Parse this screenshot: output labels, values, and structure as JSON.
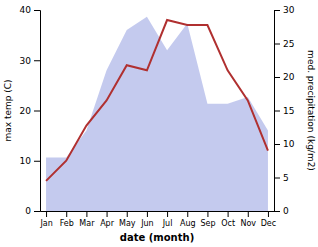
{
  "chart_data": {
    "type": "line",
    "categories": [
      "Jan",
      "Feb",
      "Mar",
      "Apr",
      "May",
      "Jun",
      "Jul",
      "Aug",
      "Sep",
      "Oct",
      "Nov",
      "Dec"
    ],
    "series": [
      {
        "type": "area",
        "axis": "y2",
        "color": "#b0b8e8",
        "values": [
          8,
          8,
          12,
          21,
          27,
          29,
          24,
          28,
          16,
          16,
          17,
          12
        ]
      },
      {
        "type": "line",
        "color": "#b03030",
        "values": [
          6,
          10,
          17,
          22,
          29,
          28,
          38,
          37,
          37,
          28,
          22,
          12
        ]
      }
    ],
    "xlabel": "date (month)",
    "ylabel": "max temp (C)",
    "y2label": "med. precipitation (kg/m2)",
    "ylim": [
      0,
      40
    ],
    "yticks": [
      0,
      10,
      20,
      30,
      40
    ],
    "y2lim": [
      0,
      30
    ],
    "y2ticks": [
      0,
      5,
      10,
      15,
      20,
      25,
      30
    ],
    "grid": false
  }
}
